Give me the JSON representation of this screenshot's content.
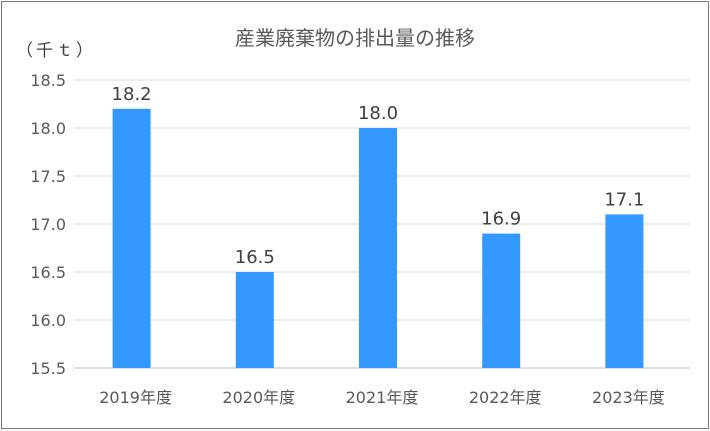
{
  "chart_data": {
    "type": "bar",
    "title": "産業廃棄物の排出量の推移",
    "ylabel": "（千ｔ）",
    "categories": [
      "2019年度",
      "2020年度",
      "2021年度",
      "2022年度",
      "2023年度"
    ],
    "values": [
      18.2,
      16.5,
      18.0,
      16.9,
      17.1
    ],
    "data_labels": [
      "18.2",
      "16.5",
      "18.0",
      "16.9",
      "17.1"
    ],
    "yticks": [
      "15.5",
      "16.0",
      "16.5",
      "17.0",
      "17.5",
      "18.0",
      "18.5"
    ],
    "ylim": [
      15.5,
      18.5
    ],
    "grid": true,
    "legend": "none",
    "colors": {
      "bar": "#3399FF",
      "grid": "#D9D9D9"
    }
  }
}
